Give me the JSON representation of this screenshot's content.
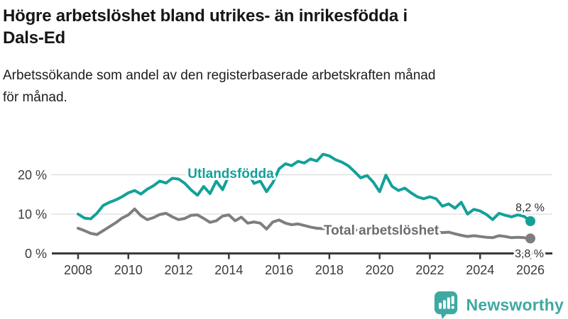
{
  "header": {
    "title_lines": [
      "Högre arbetslöshet bland utrikes- än inrikesfödda i",
      "Dals-Ed"
    ],
    "subtitle_lines": [
      "Arbetssökande som andel av den registerbaserade arbetskraften månad",
      "för månad."
    ]
  },
  "chart_data": {
    "type": "line",
    "title": "Högre arbetslöshet bland utrikes- än inrikesfödda i Dals-Ed",
    "subtitle": "Arbetssökande som andel av den registerbaserade arbetskraften månad för månad.",
    "grid": "horizontal",
    "legend_position": "inline-labels",
    "colors": {
      "axis": "#3a3a3a",
      "gridline": "#dcdcdc",
      "tick_label": "#3b3b3b",
      "annotation": "#2e2e2e"
    },
    "x_axis": {
      "start_year": 2008,
      "step_years": 0.25,
      "range": [
        2007,
        2026.9
      ],
      "ticks": [
        2008,
        2010,
        2012,
        2014,
        2016,
        2018,
        2020,
        2022,
        2024,
        2026
      ]
    },
    "y_axis": {
      "unit": "%",
      "range": [
        0,
        27
      ],
      "ticks": [
        {
          "value": 0,
          "label": "0 %"
        },
        {
          "value": 10,
          "label": "10 %"
        },
        {
          "value": 20,
          "label": "20 %"
        }
      ]
    },
    "series": [
      {
        "name": "Utlandsfödda",
        "color": "#12a19a",
        "label_color": "#12a19a",
        "end_label": "8,2 %",
        "end_value": 8.2,
        "values": [
          10.0,
          9.0,
          8.8,
          10.2,
          12.2,
          13.0,
          13.6,
          14.4,
          15.4,
          16.0,
          15.1,
          16.3,
          17.2,
          18.4,
          17.9,
          19.1,
          18.9,
          17.8,
          16.1,
          14.8,
          17.0,
          15.2,
          18.4,
          16.2,
          19.8,
          20.3,
          19.2,
          20.8,
          17.8,
          18.4,
          15.7,
          18.0,
          21.5,
          22.8,
          22.3,
          23.4,
          23.0,
          24.0,
          23.5,
          25.2,
          24.8,
          23.8,
          23.2,
          22.3,
          20.8,
          19.2,
          19.8,
          18.1,
          15.7,
          19.9,
          17.0,
          16.0,
          16.6,
          15.4,
          14.4,
          13.9,
          14.4,
          13.9,
          12.0,
          12.6,
          11.5,
          13.0,
          10.0,
          11.2,
          10.8,
          9.9,
          8.6,
          10.2,
          9.7,
          9.3,
          9.8,
          9.4,
          8.2
        ]
      },
      {
        "name": "Total arbetslöshet",
        "color": "#7e7e82",
        "label_color": "#6c6c71",
        "end_label": "3,8 %",
        "end_value": 3.8,
        "values": [
          6.4,
          5.8,
          5.1,
          4.8,
          5.8,
          6.8,
          7.8,
          9.0,
          9.8,
          11.3,
          9.6,
          8.6,
          9.1,
          9.9,
          10.2,
          9.3,
          8.6,
          8.9,
          9.7,
          9.8,
          8.9,
          7.9,
          8.3,
          9.5,
          9.8,
          8.3,
          9.2,
          7.7,
          8.0,
          7.7,
          6.2,
          8.0,
          8.5,
          7.7,
          7.3,
          7.5,
          7.1,
          6.7,
          6.4,
          6.3,
          6.2,
          6.1,
          5.9,
          6.1,
          6.0,
          5.8,
          5.7,
          5.9,
          6.2,
          6.6,
          6.4,
          6.2,
          6.0,
          5.9,
          5.7,
          5.6,
          5.5,
          5.4,
          5.3,
          5.4,
          5.0,
          4.6,
          4.3,
          4.5,
          4.3,
          4.1,
          4.0,
          4.5,
          4.3,
          4.0,
          4.1,
          4.0,
          3.8
        ]
      }
    ]
  },
  "logo": {
    "name": "Newsworthy",
    "color": "#3ea9a2"
  }
}
